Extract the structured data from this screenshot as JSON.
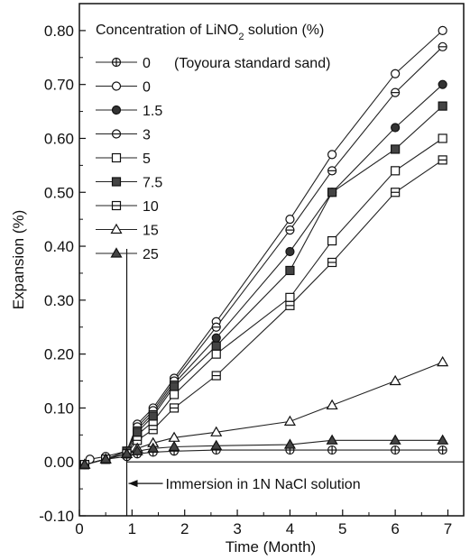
{
  "chart_data": {
    "type": "line",
    "xlabel": "Time (Month)",
    "ylabel": "Expansion (%)",
    "xlim": [
      0,
      7.3
    ],
    "ylim": [
      -0.1,
      0.85
    ],
    "xticks": [
      0,
      1,
      2,
      3,
      4,
      5,
      6,
      7
    ],
    "yticks": [
      -0.1,
      0.0,
      0.1,
      0.2,
      0.3,
      0.4,
      0.5,
      0.6,
      0.7,
      0.8
    ],
    "ytick_labels": [
      "-0.10",
      "0.00",
      "0.10",
      "0.20",
      "0.30",
      "0.40",
      "0.50",
      "0.60",
      "0.70",
      "0.80"
    ],
    "legend": {
      "title": "Concentration of LiNO",
      "title_sub": "2",
      "title_suffix": " solution (%)",
      "placement": "top-left"
    },
    "annotation": {
      "text": "Immersion in 1N NaCl solution",
      "x": 0.9
    },
    "series": [
      {
        "name": "0",
        "note": "(Toyoura standard sand)",
        "marker": "circle-cross",
        "x": [
          0.1,
          0.5,
          0.9,
          1.1,
          1.4,
          1.8,
          2.6,
          4.0,
          4.8,
          6.0,
          6.9
        ],
        "y": [
          -0.005,
          0.005,
          0.01,
          0.015,
          0.018,
          0.02,
          0.022,
          0.022,
          0.022,
          0.022,
          0.022
        ]
      },
      {
        "name": "0",
        "marker": "circle-open",
        "x": [
          0.1,
          0.2,
          0.5,
          0.9,
          1.1,
          1.4,
          1.8,
          2.6,
          4.0,
          4.8,
          6.0,
          6.9
        ],
        "y": [
          -0.005,
          0.005,
          0.01,
          0.02,
          0.07,
          0.1,
          0.155,
          0.26,
          0.45,
          0.57,
          0.72,
          0.8
        ]
      },
      {
        "name": "1.5",
        "marker": "circle-filled",
        "x": [
          0.1,
          0.5,
          0.9,
          1.1,
          1.4,
          1.8,
          2.6,
          4.0,
          4.8,
          6.0,
          6.9
        ],
        "y": [
          -0.005,
          0.005,
          0.02,
          0.06,
          0.09,
          0.145,
          0.23,
          0.39,
          0.5,
          0.62,
          0.7
        ]
      },
      {
        "name": "3",
        "marker": "circle-half",
        "x": [
          0.1,
          0.5,
          0.9,
          1.1,
          1.4,
          1.8,
          2.6,
          4.0,
          4.8,
          6.0,
          6.9
        ],
        "y": [
          -0.005,
          0.005,
          0.02,
          0.065,
          0.095,
          0.15,
          0.25,
          0.43,
          0.54,
          0.685,
          0.77
        ]
      },
      {
        "name": "5",
        "marker": "square-open",
        "x": [
          0.1,
          0.5,
          0.9,
          1.1,
          1.4,
          1.8,
          2.6,
          4.0,
          4.8,
          6.0,
          6.9
        ],
        "y": [
          -0.005,
          0.005,
          0.015,
          0.05,
          0.075,
          0.125,
          0.2,
          0.305,
          0.41,
          0.54,
          0.6
        ]
      },
      {
        "name": "7.5",
        "marker": "square-filled",
        "x": [
          0.1,
          0.5,
          0.9,
          1.1,
          1.4,
          1.8,
          2.6,
          4.0,
          4.8,
          6.0,
          6.9
        ],
        "y": [
          -0.005,
          0.005,
          0.02,
          0.055,
          0.085,
          0.14,
          0.215,
          0.355,
          0.5,
          0.58,
          0.66
        ]
      },
      {
        "name": "10",
        "marker": "square-half",
        "x": [
          0.1,
          0.5,
          0.9,
          1.1,
          1.4,
          1.8,
          2.6,
          4.0,
          4.8,
          6.0,
          6.9
        ],
        "y": [
          -0.005,
          0.005,
          0.015,
          0.04,
          0.06,
          0.1,
          0.16,
          0.29,
          0.37,
          0.5,
          0.56
        ]
      },
      {
        "name": "15",
        "marker": "triangle-open",
        "x": [
          0.1,
          0.5,
          0.9,
          1.1,
          1.4,
          1.8,
          2.6,
          4.0,
          4.8,
          6.0,
          6.9
        ],
        "y": [
          -0.005,
          0.005,
          0.015,
          0.025,
          0.035,
          0.045,
          0.055,
          0.075,
          0.105,
          0.15,
          0.185
        ]
      },
      {
        "name": "25",
        "marker": "triangle-filled",
        "x": [
          0.1,
          0.5,
          0.9,
          1.1,
          1.4,
          1.8,
          2.6,
          4.0,
          4.8,
          6.0,
          6.9
        ],
        "y": [
          -0.005,
          0.005,
          0.015,
          0.02,
          0.025,
          0.028,
          0.03,
          0.032,
          0.04,
          0.04,
          0.04
        ]
      }
    ]
  }
}
